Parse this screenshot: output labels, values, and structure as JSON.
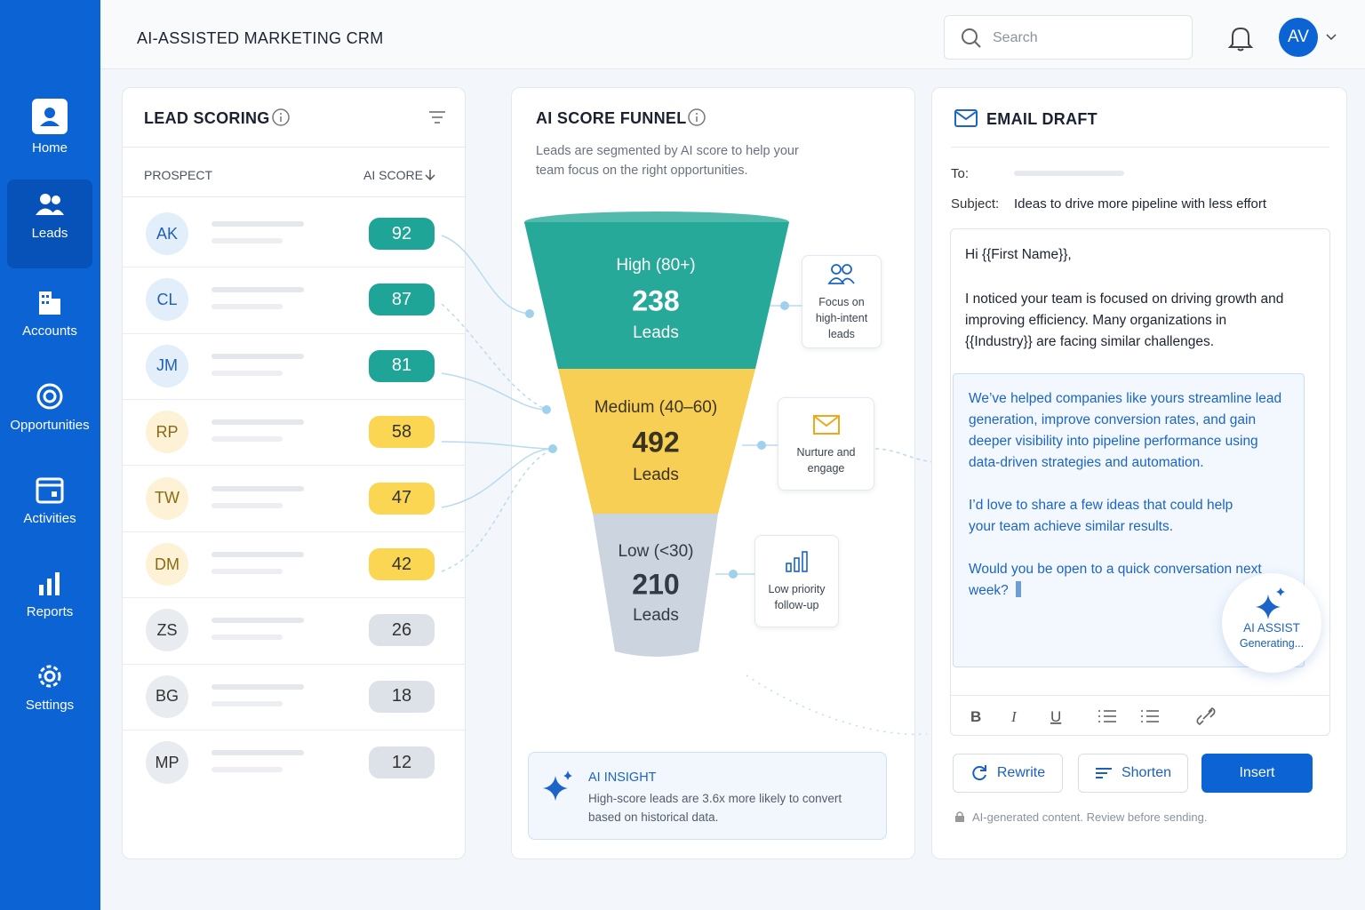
{
  "header": {
    "title": "AI-ASSISTED MARKETING CRM",
    "search_placeholder": "Search",
    "avatar": "AV"
  },
  "nav": {
    "active": 1,
    "items": [
      {
        "label": "Home"
      },
      {
        "label": "Leads"
      },
      {
        "label": "Accounts"
      },
      {
        "label": "Opportunities"
      },
      {
        "label": "Activities"
      },
      {
        "label": "Reports"
      },
      {
        "label": "Settings"
      }
    ]
  },
  "lead_scoring": {
    "title": "LEAD SCORING",
    "columns": [
      "PROSPECT",
      "AI SCORE"
    ],
    "rows": [
      {
        "initials": "AK",
        "score": 92,
        "color": "#1ea597",
        "text_color": "#ffffff",
        "avatar_bg": "#e3eefb",
        "avatar_fg": "#1f5fb8"
      },
      {
        "initials": "CL",
        "score": 87,
        "color": "#1ea597",
        "text_color": "#ffffff",
        "avatar_bg": "#e3eefb",
        "avatar_fg": "#1f5fb8"
      },
      {
        "initials": "JM",
        "score": 81,
        "color": "#1ea597",
        "text_color": "#ffffff",
        "avatar_bg": "#e3eefb",
        "avatar_fg": "#1f5fb8"
      },
      {
        "initials": "RP",
        "score": 58,
        "color": "#fbd653",
        "text_color": "#333333",
        "avatar_bg": "#fdf2d6",
        "avatar_fg": "#8a6a14"
      },
      {
        "initials": "TW",
        "score": 47,
        "color": "#fbd653",
        "text_color": "#333333",
        "avatar_bg": "#fdf2d6",
        "avatar_fg": "#8a6a14"
      },
      {
        "initials": "DM",
        "score": 42,
        "color": "#fbd653",
        "text_color": "#333333",
        "avatar_bg": "#fdf2d6",
        "avatar_fg": "#8a6a14"
      },
      {
        "initials": "ZS",
        "score": 26,
        "color": "#dde2e9",
        "text_color": "#333333",
        "avatar_bg": "#e8ebef",
        "avatar_fg": "#333333"
      },
      {
        "initials": "BG",
        "score": 18,
        "color": "#dde2e9",
        "text_color": "#333333",
        "avatar_bg": "#e8ebef",
        "avatar_fg": "#333333"
      },
      {
        "initials": "MP",
        "score": 12,
        "color": "#dde2e9",
        "text_color": "#333333",
        "avatar_bg": "#e8ebef",
        "avatar_fg": "#333333"
      }
    ]
  },
  "funnel": {
    "title": "AI SCORE FUNNEL",
    "description": "Leads are segmented by AI score to help your team focus on the right opportunities.",
    "stages": [
      {
        "label": "High (80+)",
        "count": 238,
        "unit": "Leads",
        "note": "Focus on high-intent leads",
        "color": "#26a999",
        "text_color": "#ffffff"
      },
      {
        "label": "Medium (40–60)",
        "count": 492,
        "unit": "Leads",
        "note": "Nurture and engage",
        "color": "#f8cf55",
        "text_color": "#3a3320"
      },
      {
        "label": "Low (<30)",
        "count": 210,
        "unit": "Leads",
        "note": "Low priority follow-up",
        "color": "#cbd4df",
        "text_color": "#333a44"
      }
    ],
    "insight": {
      "title": "AI INSIGHT",
      "text": "High-score leads are 3.6x more likely to convert based on historical data."
    }
  },
  "email": {
    "title": "EMAIL DRAFT",
    "to_label": "To:",
    "subject_label": "Subject:",
    "subject": "Ideas to drive more pipeline with less effort",
    "greeting": "Hi {{First Name}},",
    "paragraph": "I noticed your team is focused on driving growth and improving efficiency. Many organizations in {{Industry}} are facing similar challenges.",
    "ai_paragraphs": [
      "We’ve helped companies like yours streamline lead generation, improve conversion rates, and gain deeper visibility into pipeline performance using data-driven strategies and automation.",
      "I’d love to share a few ideas that could help your team achieve similar results.",
      "Would you be open to a quick conversation next week?"
    ],
    "assist_title": "AI ASSIST",
    "assist_status": "Generating...",
    "buttons": [
      "Rewrite",
      "Shorten",
      "Insert"
    ],
    "footnote": "AI-generated content. Review before sending."
  }
}
